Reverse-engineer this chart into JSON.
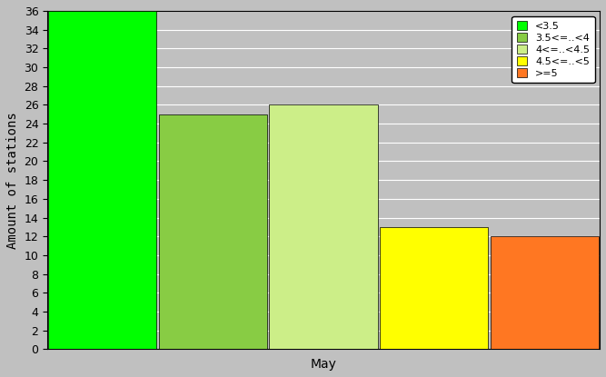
{
  "bars": [
    {
      "label": "<3.5",
      "value": 36,
      "color": "#00FF00"
    },
    {
      "label": "3.5<=..<4",
      "value": 25,
      "color": "#88CC44"
    },
    {
      "label": "4<=..<4.5",
      "value": 26,
      "color": "#CCEE88"
    },
    {
      "label": "4.5<=..<5",
      "value": 13,
      "color": "#FFFF00"
    },
    {
      "label": ">=5",
      "value": 12,
      "color": "#FF7722"
    }
  ],
  "ylabel": "Amount of stations",
  "xlabel": "May",
  "ylim": [
    0,
    36
  ],
  "yticks": [
    0,
    2,
    4,
    6,
    8,
    10,
    12,
    14,
    16,
    18,
    20,
    22,
    24,
    26,
    28,
    30,
    32,
    34,
    36
  ],
  "background_color": "#C0C0C0",
  "figure_facecolor": "#C0C0C0",
  "bar_positions": [
    0,
    1,
    2,
    3,
    4
  ],
  "bar_width": 0.98
}
